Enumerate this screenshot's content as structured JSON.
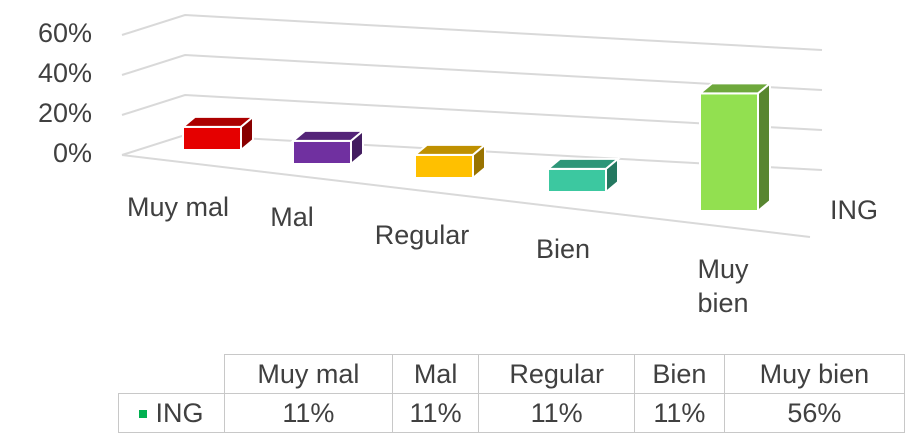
{
  "chart_data": {
    "type": "bar3d",
    "categories": [
      "Muy mal",
      "Mal",
      "Regular",
      "Bien",
      "Muy bien"
    ],
    "series": [
      {
        "name": "ING",
        "color": "#00b050",
        "bar_colors": [
          "#e50000",
          "#7030a0",
          "#ffc000",
          "#3cc8a0",
          "#92e050"
        ],
        "values": [
          11,
          11,
          11,
          11,
          56
        ],
        "value_labels": [
          "11%",
          "11%",
          "11%",
          "11%",
          "56%"
        ]
      }
    ],
    "ylim": [
      0,
      60
    ],
    "yticks": [
      {
        "value": 0,
        "label": "0%"
      },
      {
        "value": 20,
        "label": "20%"
      },
      {
        "value": 40,
        "label": "40%"
      },
      {
        "value": 60,
        "label": "60%"
      }
    ],
    "grid": true,
    "legend": "table"
  }
}
